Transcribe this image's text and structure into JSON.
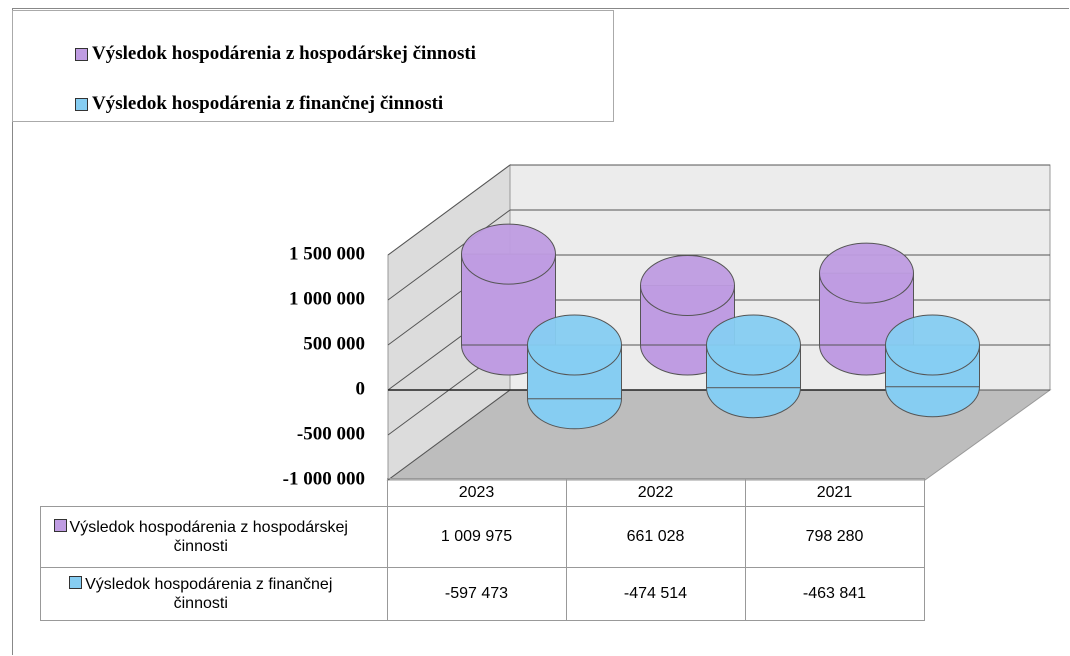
{
  "chart_data": {
    "type": "bar",
    "categories": [
      "2023",
      "2022",
      "2021"
    ],
    "series": [
      {
        "name": "Výsledok hospodárenia z hospodárskej činnosti",
        "color": "#bf9ce2",
        "values": [
          1009975,
          661028,
          798280
        ],
        "value_labels": [
          "1 009 975",
          "661 028",
          "798 280"
        ]
      },
      {
        "name": "Výsledok hospodárenia z finančnej činnosti",
        "color": "#86cdf2",
        "values": [
          -597473,
          -474514,
          -463841
        ],
        "value_labels": [
          "-597 473",
          "-474 514",
          "-463 841"
        ]
      }
    ],
    "ylim": [
      -1000000,
      1500000
    ],
    "yticks": [
      {
        "value": 1500000,
        "label": "1 500 000"
      },
      {
        "value": 1000000,
        "label": "1 000 000"
      },
      {
        "value": 500000,
        "label": "500 000"
      },
      0,
      {
        "value": -500000,
        "label": "-500 000"
      },
      {
        "value": -1000000,
        "label": "-1 000 000"
      }
    ],
    "grid": true
  }
}
